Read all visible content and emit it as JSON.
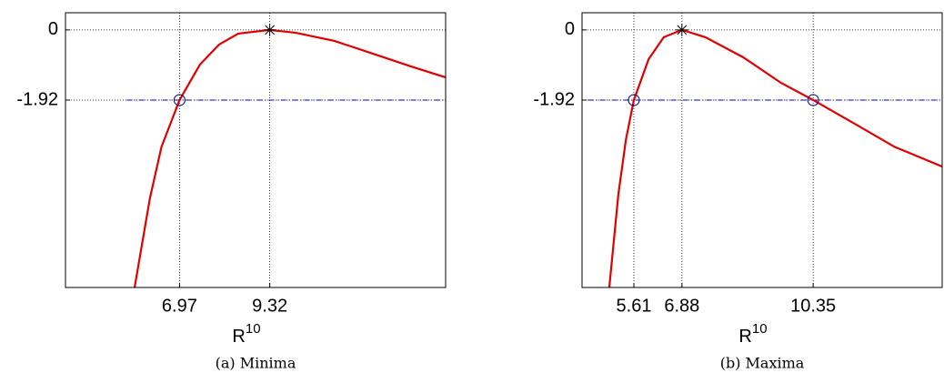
{
  "chart_data": [
    {
      "type": "line",
      "caption": "(a) Minima",
      "xlabel": {
        "base": "R",
        "sup": "10"
      },
      "x": [
        5.8,
        6.2,
        6.5,
        6.97,
        7.5,
        8.0,
        8.5,
        9.32,
        10.0,
        11.0,
        12.0,
        13.0,
        13.9
      ],
      "values": [
        -7.05,
        -4.6,
        -3.2,
        -1.92,
        -0.95,
        -0.4,
        -0.1,
        0,
        -0.08,
        -0.3,
        -0.65,
        -1.0,
        -1.3
      ],
      "color": "#e00000",
      "xlim": [
        4.0,
        13.9
      ],
      "ylim": [
        -7.05,
        0.47
      ],
      "xticks": [
        6.97,
        9.32
      ],
      "yticks": [
        0,
        -1.92
      ],
      "grid": true,
      "hline": {
        "y": -1.92,
        "xstart": 5.6,
        "color": "#0000c0"
      },
      "markers": [
        {
          "x": 6.97,
          "y": -1.92,
          "symbol": "circle"
        },
        {
          "x": 9.32,
          "y": 0,
          "symbol": "star"
        }
      ]
    },
    {
      "type": "line",
      "caption": "(b) Maxima",
      "xlabel": {
        "base": "R",
        "sup": "10"
      },
      "x": [
        4.96,
        5.2,
        5.4,
        5.61,
        6.0,
        6.4,
        6.88,
        7.5,
        8.5,
        9.5,
        10.35,
        11.5,
        12.5,
        13.76
      ],
      "values": [
        -7.05,
        -4.5,
        -3.0,
        -1.92,
        -0.8,
        -0.2,
        0,
        -0.2,
        -0.75,
        -1.45,
        -1.92,
        -2.6,
        -3.2,
        -3.74
      ],
      "color": "#e00000",
      "xlim": [
        4.24,
        13.76
      ],
      "ylim": [
        -7.05,
        0.47
      ],
      "xticks": [
        5.61,
        6.88,
        10.35
      ],
      "yticks": [
        0,
        -1.92
      ],
      "grid": true,
      "hline": {
        "y": -1.92,
        "xstart": 4.4,
        "color": "#0000c0"
      },
      "markers": [
        {
          "x": 5.61,
          "y": -1.92,
          "symbol": "circle"
        },
        {
          "x": 6.88,
          "y": 0,
          "symbol": "star"
        },
        {
          "x": 10.35,
          "y": -1.92,
          "symbol": "circle"
        }
      ]
    }
  ]
}
